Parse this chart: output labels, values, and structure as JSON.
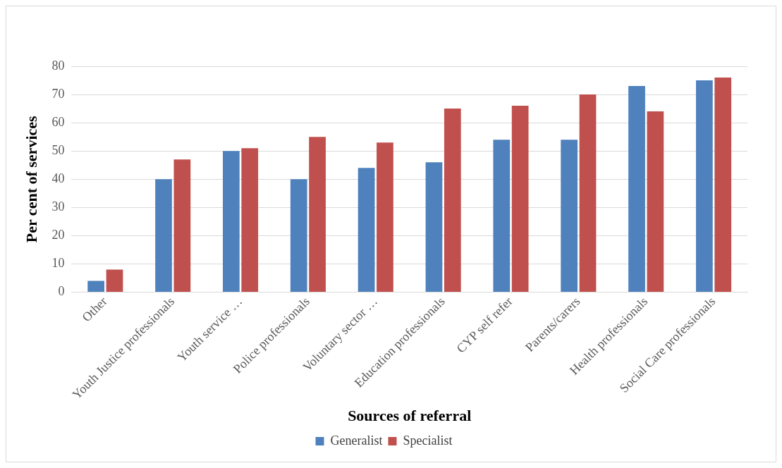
{
  "chart_data": {
    "type": "bar",
    "xlabel": "Sources of referral",
    "ylabel": "Per cent of services",
    "categories": [
      "Other",
      "Youth Justice professionals",
      "Youth service …",
      "Police professionals",
      "Voluntary sector …",
      "Education professionals",
      "CYP self refer",
      "Parents/carers",
      "Health professionals",
      "Social Care professionals"
    ],
    "series": [
      {
        "name": "Generalist",
        "color": "#4f81bd",
        "values": [
          4,
          40,
          50,
          40,
          44,
          46,
          54,
          54,
          73,
          75
        ]
      },
      {
        "name": "Specialist",
        "color": "#c0504d",
        "values": [
          8,
          47,
          51,
          55,
          53,
          65,
          66,
          70,
          64,
          76
        ]
      }
    ],
    "ylim": [
      0,
      80
    ],
    "yticks": [
      0,
      10,
      20,
      30,
      40,
      50,
      60,
      70,
      80
    ],
    "grid": "y",
    "legend": "bottom"
  }
}
